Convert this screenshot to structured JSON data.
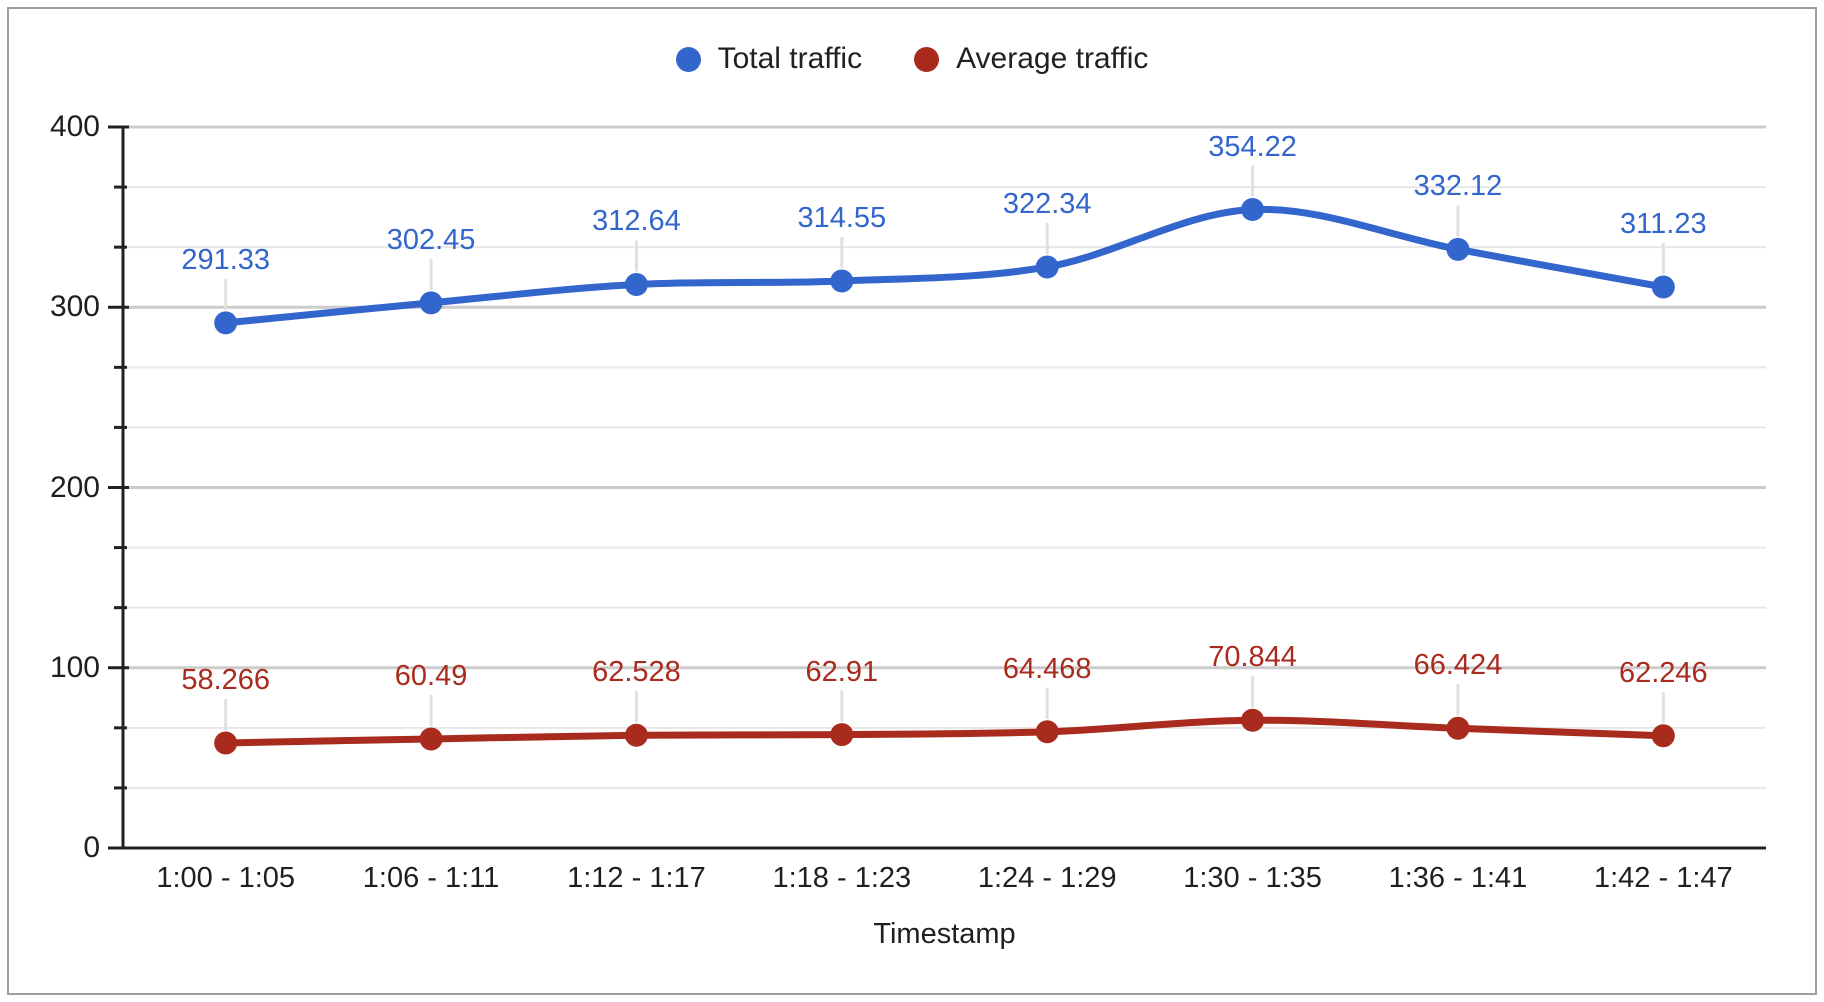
{
  "page": {
    "background": "#ffffff",
    "frame_border_color": "#9e9e9e"
  },
  "chart_data": {
    "type": "line",
    "title": "",
    "categories": [
      "1:00 - 1:05",
      "1:06 - 1:11",
      "1:12 - 1:17",
      "1:18 - 1:23",
      "1:24 - 1:29",
      "1:30 - 1:35",
      "1:36 - 1:41",
      "1:42 - 1:47"
    ],
    "series": [
      {
        "name": "Total traffic",
        "color": "#3366CC",
        "values": [
          291.33,
          302.45,
          312.64,
          314.55,
          322.34,
          354.22,
          332.12,
          311.23
        ],
        "labels": [
          "291.33",
          "302.45",
          "312.64",
          "314.55",
          "322.34",
          "354.22",
          "332.12",
          "311.23"
        ]
      },
      {
        "name": "Average traffic",
        "color": "#A92B1E",
        "values": [
          58.266,
          60.49,
          62.528,
          62.91,
          64.468,
          70.844,
          66.424,
          62.246
        ],
        "labels": [
          "58.266",
          "60.49",
          "62.528",
          "62.91",
          "64.468",
          "70.844",
          "66.424",
          "62.246"
        ]
      }
    ],
    "xlabel": "Timestamp",
    "ylabel": "",
    "ylim": [
      0,
      400
    ],
    "y_ticks": [
      "0",
      "100",
      "200",
      "300",
      "400"
    ],
    "y_major_step": 100,
    "y_minor_divisions": 3,
    "grid": "horizontal-major-and-minor",
    "legend_position": "top",
    "smooth": true,
    "point_labels": true,
    "colors": {
      "grid_major": "#cccccc",
      "grid_minor": "#e7e7e7",
      "axis": "#212121",
      "label_leader": "#e0e0e0",
      "tick_text": "#1f1f1f",
      "legend_text": "#212121"
    }
  }
}
